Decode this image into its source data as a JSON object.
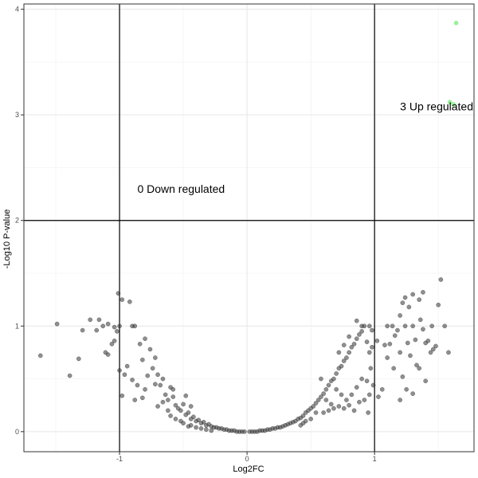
{
  "chart_data": {
    "type": "scatter",
    "title": "",
    "xlabel": "Log2FC",
    "ylabel": "-Log10 P-value",
    "xlim": [
      -1.75,
      1.78
    ],
    "ylim": [
      -0.19,
      4.05
    ],
    "x_ticks": [
      -1,
      0,
      1
    ],
    "x_tick_labels": [
      "-1",
      "0",
      "1"
    ],
    "y_ticks": [
      0,
      1,
      2,
      3,
      4
    ],
    "y_tick_labels": [
      "0",
      "1",
      "2",
      "3",
      "4"
    ],
    "grid": true,
    "legend": "none",
    "thresholds": {
      "log2fc": [
        -1,
        1
      ],
      "neg_log10_p": 2
    },
    "annotations": [
      {
        "text": "0 Down regulated",
        "x": -0.86,
        "y": 2.3
      },
      {
        "text": "3 Up regulated",
        "x": 1.2,
        "y": 3.08
      }
    ],
    "colors": {
      "not_significant": "#333333",
      "up_regulated": "#90ee90"
    },
    "series": [
      {
        "group": "not_significant",
        "color": "#333333",
        "points": [
          [
            -1.62,
            0.72
          ],
          [
            -1.49,
            1.02
          ],
          [
            -1.39,
            0.53
          ],
          [
            -1.32,
            0.69
          ],
          [
            -1.29,
            0.96
          ],
          [
            -1.23,
            1.06
          ],
          [
            -1.18,
            0.96
          ],
          [
            -1.16,
            1.06
          ],
          [
            -1.13,
            1.0
          ],
          [
            -1.09,
            1.02
          ],
          [
            -1.11,
            0.75
          ],
          [
            -1.09,
            0.73
          ],
          [
            -1.06,
            0.83
          ],
          [
            -1.04,
            0.86
          ],
          [
            -1.04,
            0.99
          ],
          [
            -1.02,
            0.95
          ],
          [
            -1.0,
            1.0
          ],
          [
            -1.01,
            1.31
          ],
          [
            -0.98,
            1.25
          ],
          [
            -1.0,
            0.58
          ],
          [
            -0.98,
            0.34
          ],
          [
            -0.96,
            0.54
          ],
          [
            -0.94,
            0.62
          ],
          [
            -0.92,
            1.23
          ],
          [
            -0.9,
            1.0
          ],
          [
            -0.88,
            1.0
          ],
          [
            -0.9,
            0.49
          ],
          [
            -0.88,
            0.3
          ],
          [
            -0.86,
            0.44
          ],
          [
            -0.84,
            0.83
          ],
          [
            -0.82,
            0.68
          ],
          [
            -0.8,
            0.4
          ],
          [
            -0.78,
            0.53
          ],
          [
            -0.8,
            0.88
          ],
          [
            -0.82,
            0.32
          ],
          [
            -0.76,
            0.78
          ],
          [
            -0.74,
            0.6
          ],
          [
            -0.72,
            0.7
          ],
          [
            -0.7,
            0.54
          ],
          [
            -0.68,
            0.44
          ],
          [
            -0.66,
            0.5
          ],
          [
            -0.64,
            0.35
          ],
          [
            -0.62,
            0.3
          ],
          [
            -0.6,
            0.42
          ],
          [
            -0.58,
            0.33
          ],
          [
            -0.56,
            0.25
          ],
          [
            -0.54,
            0.22
          ],
          [
            -0.52,
            0.2
          ],
          [
            -0.5,
            0.26
          ],
          [
            -0.48,
            0.16
          ],
          [
            -0.46,
            0.18
          ],
          [
            -0.44,
            0.12
          ],
          [
            -0.42,
            0.14
          ],
          [
            -0.4,
            0.1
          ],
          [
            -0.38,
            0.11
          ],
          [
            -0.36,
            0.08
          ],
          [
            -0.34,
            0.09
          ],
          [
            -0.32,
            0.06
          ],
          [
            -0.3,
            0.07
          ],
          [
            -0.28,
            0.05
          ],
          [
            -0.26,
            0.04
          ],
          [
            -0.24,
            0.04
          ],
          [
            -0.22,
            0.03
          ],
          [
            -0.2,
            0.03
          ],
          [
            -0.18,
            0.02
          ],
          [
            -0.16,
            0.02
          ],
          [
            -0.14,
            0.01
          ],
          [
            -0.12,
            0.01
          ],
          [
            -0.1,
            0.01
          ],
          [
            -0.08,
            0.0
          ],
          [
            -0.06,
            0.0
          ],
          [
            -0.04,
            0.0
          ],
          [
            -0.02,
            0.0
          ],
          [
            -0.7,
            0.24
          ],
          [
            -0.66,
            0.28
          ],
          [
            -0.62,
            0.2
          ],
          [
            -0.6,
            0.15
          ],
          [
            -0.56,
            0.12
          ],
          [
            -0.52,
            0.1
          ],
          [
            -0.5,
            0.08
          ],
          [
            -0.46,
            0.05
          ],
          [
            -0.44,
            0.06
          ],
          [
            -0.4,
            0.04
          ],
          [
            -0.36,
            0.03
          ],
          [
            -0.32,
            0.02
          ],
          [
            -0.28,
            0.01
          ],
          [
            -0.48,
            0.34
          ],
          [
            -0.44,
            0.24
          ],
          [
            -0.58,
            0.4
          ],
          [
            -0.72,
            0.45
          ],
          [
            0.02,
            0.0
          ],
          [
            0.04,
            0.0
          ],
          [
            0.06,
            0.0
          ],
          [
            0.08,
            0.0
          ],
          [
            0.1,
            0.01
          ],
          [
            0.12,
            0.01
          ],
          [
            0.14,
            0.01
          ],
          [
            0.16,
            0.02
          ],
          [
            0.18,
            0.02
          ],
          [
            0.2,
            0.03
          ],
          [
            0.22,
            0.03
          ],
          [
            0.24,
            0.04
          ],
          [
            0.26,
            0.04
          ],
          [
            0.28,
            0.05
          ],
          [
            0.3,
            0.06
          ],
          [
            0.32,
            0.07
          ],
          [
            0.34,
            0.08
          ],
          [
            0.36,
            0.09
          ],
          [
            0.38,
            0.1
          ],
          [
            0.4,
            0.12
          ],
          [
            0.42,
            0.13
          ],
          [
            0.44,
            0.15
          ],
          [
            0.46,
            0.18
          ],
          [
            0.48,
            0.2
          ],
          [
            0.5,
            0.22
          ],
          [
            0.52,
            0.24
          ],
          [
            0.54,
            0.27
          ],
          [
            0.56,
            0.3
          ],
          [
            0.58,
            0.33
          ],
          [
            0.6,
            0.36
          ],
          [
            0.62,
            0.4
          ],
          [
            0.64,
            0.44
          ],
          [
            0.66,
            0.48
          ],
          [
            0.68,
            0.5
          ],
          [
            0.7,
            0.55
          ],
          [
            0.72,
            0.6
          ],
          [
            0.74,
            0.62
          ],
          [
            0.76,
            0.67
          ],
          [
            0.78,
            0.7
          ],
          [
            0.8,
            0.75
          ],
          [
            0.82,
            0.8
          ],
          [
            0.84,
            0.83
          ],
          [
            0.86,
            0.88
          ],
          [
            0.88,
            0.92
          ],
          [
            0.9,
            0.95
          ],
          [
            0.92,
            1.0
          ],
          [
            0.94,
            0.85
          ],
          [
            0.96,
            0.75
          ],
          [
            0.98,
            0.8
          ],
          [
            0.96,
            1.0
          ],
          [
            0.58,
            0.5
          ],
          [
            0.62,
            0.3
          ],
          [
            0.66,
            0.26
          ],
          [
            0.7,
            0.4
          ],
          [
            0.74,
            0.35
          ],
          [
            0.78,
            0.3
          ],
          [
            0.82,
            0.35
          ],
          [
            0.86,
            0.42
          ],
          [
            0.9,
            0.5
          ],
          [
            0.94,
            0.48
          ],
          [
            0.6,
            0.18
          ],
          [
            0.64,
            0.2
          ],
          [
            0.68,
            0.22
          ],
          [
            0.72,
            0.24
          ],
          [
            0.76,
            0.22
          ],
          [
            0.8,
            0.25
          ],
          [
            0.84,
            0.2
          ],
          [
            0.88,
            0.28
          ],
          [
            0.92,
            0.3
          ],
          [
            0.96,
            0.35
          ],
          [
            0.86,
            1.05
          ],
          [
            0.9,
            1.0
          ],
          [
            0.8,
            0.9
          ],
          [
            0.76,
            0.82
          ],
          [
            0.72,
            0.75
          ],
          [
            0.54,
            0.18
          ],
          [
            0.5,
            0.12
          ],
          [
            0.46,
            0.1
          ],
          [
            0.44,
            0.08
          ],
          [
            0.42,
            0.06
          ],
          [
            0.98,
            0.96
          ],
          [
            0.95,
            0.18
          ],
          [
            0.99,
            0.44
          ],
          [
            0.97,
            0.6
          ],
          [
            1.02,
            0.86
          ],
          [
            1.03,
            0.33
          ],
          [
            1.06,
            0.4
          ],
          [
            1.08,
            0.82
          ],
          [
            1.1,
            0.7
          ],
          [
            1.12,
            0.83
          ],
          [
            1.15,
            0.6
          ],
          [
            1.16,
            0.91
          ],
          [
            1.18,
            0.96
          ],
          [
            1.2,
            0.75
          ],
          [
            1.22,
            0.52
          ],
          [
            1.24,
            1.0
          ],
          [
            1.26,
            0.84
          ],
          [
            1.28,
            0.72
          ],
          [
            1.3,
            1.0
          ],
          [
            1.32,
            0.87
          ],
          [
            1.33,
            0.63
          ],
          [
            1.36,
            1.06
          ],
          [
            1.38,
            0.97
          ],
          [
            1.4,
            0.84
          ],
          [
            1.42,
            0.86
          ],
          [
            1.44,
            0.75
          ],
          [
            1.46,
            0.78
          ],
          [
            1.48,
            0.81
          ],
          [
            1.1,
            1.0
          ],
          [
            1.14,
            1.0
          ],
          [
            1.2,
            1.1
          ],
          [
            1.22,
            1.22
          ],
          [
            1.24,
            1.27
          ],
          [
            1.27,
            1.18
          ],
          [
            1.3,
            1.3
          ],
          [
            1.35,
            1.25
          ],
          [
            1.38,
            1.32
          ],
          [
            1.45,
            1.0
          ],
          [
            1.5,
            1.2
          ],
          [
            1.52,
            1.44
          ],
          [
            1.55,
            1.0
          ],
          [
            1.58,
            0.75
          ],
          [
            1.4,
            0.48
          ],
          [
            1.3,
            0.36
          ],
          [
            1.2,
            0.3
          ],
          [
            1.25,
            0.4
          ],
          [
            1.35,
            0.6
          ]
        ]
      },
      {
        "group": "up_regulated",
        "color": "#90ee90",
        "points": [
          [
            1.64,
            3.87
          ],
          [
            1.59,
            3.12
          ],
          [
            1.62,
            3.1
          ]
        ]
      }
    ]
  }
}
